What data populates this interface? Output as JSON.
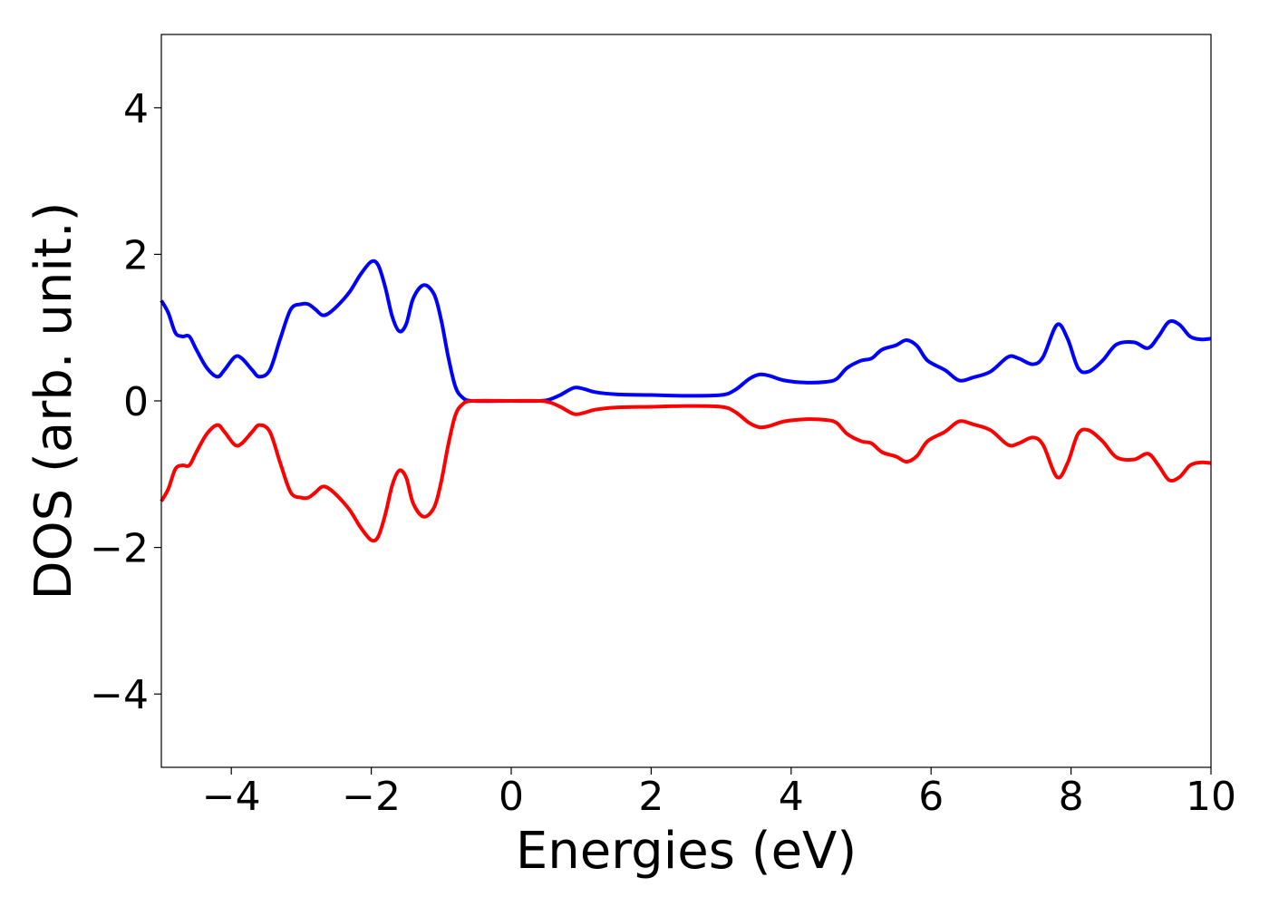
{
  "chart_data": {
    "type": "line",
    "title": "",
    "xlabel": "Energies (eV)",
    "ylabel": "DOS (arb. unit.)",
    "xlim": [
      -5,
      10
    ],
    "ylim": [
      -5,
      5
    ],
    "x_ticks": [
      -4,
      -2,
      0,
      2,
      4,
      6,
      8,
      10
    ],
    "x_tick_labels": [
      "−4",
      "−2",
      "0",
      "2",
      "4",
      "6",
      "8",
      "10"
    ],
    "y_ticks": [
      -4,
      -2,
      0,
      2,
      4
    ],
    "y_tick_labels": [
      "−4",
      "−2",
      "0",
      "2",
      "4"
    ],
    "grid": false,
    "legend": "none",
    "series": [
      {
        "color": "#0000ff",
        "points": [
          [
            -5.0,
            1.37
          ],
          [
            -4.9,
            1.2
          ],
          [
            -4.8,
            0.93
          ],
          [
            -4.7,
            0.88
          ],
          [
            -4.6,
            0.88
          ],
          [
            -4.5,
            0.7
          ],
          [
            -4.35,
            0.45
          ],
          [
            -4.2,
            0.33
          ],
          [
            -4.1,
            0.42
          ],
          [
            -3.95,
            0.6
          ],
          [
            -3.85,
            0.58
          ],
          [
            -3.7,
            0.42
          ],
          [
            -3.6,
            0.33
          ],
          [
            -3.45,
            0.42
          ],
          [
            -3.3,
            0.85
          ],
          [
            -3.15,
            1.25
          ],
          [
            -3.0,
            1.32
          ],
          [
            -2.9,
            1.32
          ],
          [
            -2.8,
            1.25
          ],
          [
            -2.7,
            1.17
          ],
          [
            -2.6,
            1.2
          ],
          [
            -2.45,
            1.33
          ],
          [
            -2.3,
            1.5
          ],
          [
            -2.15,
            1.73
          ],
          [
            -2.0,
            1.9
          ],
          [
            -1.9,
            1.85
          ],
          [
            -1.8,
            1.55
          ],
          [
            -1.7,
            1.15
          ],
          [
            -1.6,
            0.95
          ],
          [
            -1.5,
            1.05
          ],
          [
            -1.4,
            1.4
          ],
          [
            -1.25,
            1.58
          ],
          [
            -1.1,
            1.45
          ],
          [
            -1.0,
            1.1
          ],
          [
            -0.9,
            0.6
          ],
          [
            -0.8,
            0.2
          ],
          [
            -0.7,
            0.05
          ],
          [
            -0.55,
            0.0
          ],
          [
            0.0,
            0.0
          ],
          [
            0.4,
            0.0
          ],
          [
            0.55,
            0.02
          ],
          [
            0.7,
            0.08
          ],
          [
            0.9,
            0.18
          ],
          [
            1.05,
            0.16
          ],
          [
            1.2,
            0.12
          ],
          [
            1.5,
            0.09
          ],
          [
            2.0,
            0.08
          ],
          [
            2.5,
            0.07
          ],
          [
            3.0,
            0.08
          ],
          [
            3.2,
            0.15
          ],
          [
            3.4,
            0.3
          ],
          [
            3.55,
            0.36
          ],
          [
            3.7,
            0.34
          ],
          [
            3.9,
            0.28
          ],
          [
            4.2,
            0.25
          ],
          [
            4.5,
            0.26
          ],
          [
            4.65,
            0.3
          ],
          [
            4.8,
            0.45
          ],
          [
            5.0,
            0.55
          ],
          [
            5.15,
            0.58
          ],
          [
            5.3,
            0.7
          ],
          [
            5.5,
            0.76
          ],
          [
            5.65,
            0.83
          ],
          [
            5.8,
            0.75
          ],
          [
            5.95,
            0.55
          ],
          [
            6.2,
            0.42
          ],
          [
            6.4,
            0.28
          ],
          [
            6.6,
            0.32
          ],
          [
            6.85,
            0.4
          ],
          [
            7.1,
            0.6
          ],
          [
            7.25,
            0.58
          ],
          [
            7.45,
            0.5
          ],
          [
            7.6,
            0.6
          ],
          [
            7.8,
            1.04
          ],
          [
            7.95,
            0.85
          ],
          [
            8.1,
            0.45
          ],
          [
            8.25,
            0.4
          ],
          [
            8.45,
            0.55
          ],
          [
            8.65,
            0.77
          ],
          [
            8.9,
            0.8
          ],
          [
            9.1,
            0.72
          ],
          [
            9.25,
            0.88
          ],
          [
            9.4,
            1.08
          ],
          [
            9.55,
            1.04
          ],
          [
            9.7,
            0.88
          ],
          [
            9.85,
            0.84
          ],
          [
            10.0,
            0.85
          ]
        ]
      },
      {
        "color": "#ff0000",
        "points": [
          [
            -5.0,
            -1.37
          ],
          [
            -4.9,
            -1.2
          ],
          [
            -4.8,
            -0.93
          ],
          [
            -4.7,
            -0.88
          ],
          [
            -4.6,
            -0.88
          ],
          [
            -4.5,
            -0.7
          ],
          [
            -4.35,
            -0.45
          ],
          [
            -4.2,
            -0.33
          ],
          [
            -4.1,
            -0.42
          ],
          [
            -3.95,
            -0.6
          ],
          [
            -3.85,
            -0.58
          ],
          [
            -3.7,
            -0.42
          ],
          [
            -3.6,
            -0.33
          ],
          [
            -3.45,
            -0.42
          ],
          [
            -3.3,
            -0.85
          ],
          [
            -3.15,
            -1.25
          ],
          [
            -3.0,
            -1.32
          ],
          [
            -2.9,
            -1.32
          ],
          [
            -2.8,
            -1.25
          ],
          [
            -2.7,
            -1.17
          ],
          [
            -2.6,
            -1.2
          ],
          [
            -2.45,
            -1.33
          ],
          [
            -2.3,
            -1.5
          ],
          [
            -2.15,
            -1.73
          ],
          [
            -2.0,
            -1.9
          ],
          [
            -1.9,
            -1.85
          ],
          [
            -1.8,
            -1.55
          ],
          [
            -1.7,
            -1.15
          ],
          [
            -1.6,
            -0.95
          ],
          [
            -1.5,
            -1.05
          ],
          [
            -1.4,
            -1.4
          ],
          [
            -1.25,
            -1.58
          ],
          [
            -1.1,
            -1.45
          ],
          [
            -1.0,
            -1.1
          ],
          [
            -0.9,
            -0.6
          ],
          [
            -0.8,
            -0.2
          ],
          [
            -0.7,
            -0.05
          ],
          [
            -0.55,
            0.0
          ],
          [
            0.0,
            0.0
          ],
          [
            0.4,
            0.0
          ],
          [
            0.55,
            -0.02
          ],
          [
            0.7,
            -0.08
          ],
          [
            0.9,
            -0.18
          ],
          [
            1.05,
            -0.16
          ],
          [
            1.2,
            -0.12
          ],
          [
            1.5,
            -0.09
          ],
          [
            2.0,
            -0.08
          ],
          [
            2.5,
            -0.07
          ],
          [
            3.0,
            -0.08
          ],
          [
            3.2,
            -0.15
          ],
          [
            3.4,
            -0.3
          ],
          [
            3.55,
            -0.36
          ],
          [
            3.7,
            -0.34
          ],
          [
            3.9,
            -0.28
          ],
          [
            4.2,
            -0.25
          ],
          [
            4.5,
            -0.26
          ],
          [
            4.65,
            -0.3
          ],
          [
            4.8,
            -0.45
          ],
          [
            5.0,
            -0.55
          ],
          [
            5.15,
            -0.58
          ],
          [
            5.3,
            -0.7
          ],
          [
            5.5,
            -0.76
          ],
          [
            5.65,
            -0.83
          ],
          [
            5.8,
            -0.75
          ],
          [
            5.95,
            -0.55
          ],
          [
            6.2,
            -0.42
          ],
          [
            6.4,
            -0.28
          ],
          [
            6.6,
            -0.32
          ],
          [
            6.85,
            -0.4
          ],
          [
            7.1,
            -0.6
          ],
          [
            7.25,
            -0.58
          ],
          [
            7.45,
            -0.5
          ],
          [
            7.6,
            -0.6
          ],
          [
            7.8,
            -1.04
          ],
          [
            7.95,
            -0.85
          ],
          [
            8.1,
            -0.45
          ],
          [
            8.25,
            -0.4
          ],
          [
            8.45,
            -0.55
          ],
          [
            8.65,
            -0.77
          ],
          [
            8.9,
            -0.8
          ],
          [
            9.1,
            -0.72
          ],
          [
            9.25,
            -0.88
          ],
          [
            9.4,
            -1.08
          ],
          [
            9.55,
            -1.04
          ],
          [
            9.7,
            -0.88
          ],
          [
            9.85,
            -0.84
          ],
          [
            10.0,
            -0.85
          ]
        ]
      }
    ]
  }
}
